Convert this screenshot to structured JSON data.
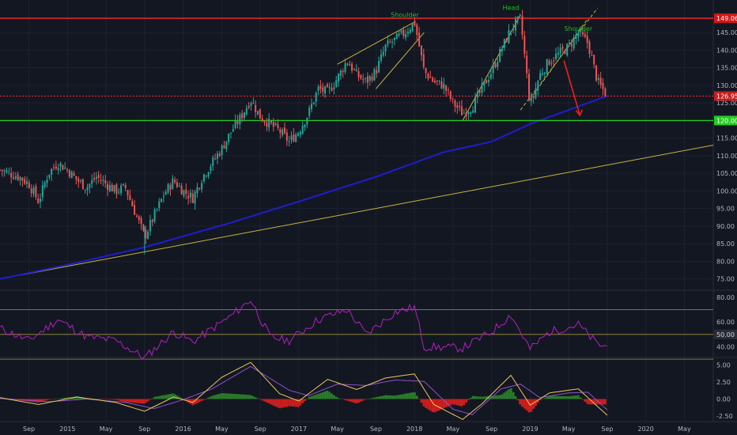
{
  "colors": {
    "background": "#131722",
    "grid": "#1e2230",
    "axis_text": "#b2b5be",
    "candle_up": "#26a69a",
    "candle_down": "#ef5350",
    "resistance": "#ff2a2a",
    "support": "#22cc22",
    "ma_long": "#1e1ecc",
    "trend_yellow": "#c8b43c",
    "rsi": "#b020c0",
    "macd_line": "#e6c85a",
    "signal_line": "#9050d0",
    "hist_up": "#2a7a2a",
    "hist_down": "#cc1e1e",
    "pattern_label": "#22bb22"
  },
  "chart_data": [
    {
      "type": "candlestick",
      "panel": "price",
      "ylim": [
        72,
        152
      ],
      "yticks": [
        "75.00",
        "80.00",
        "85.00",
        "90.00",
        "95.00",
        "100.00",
        "105.00",
        "110.00",
        "115.00",
        "120.00",
        "125.00",
        "130.00",
        "135.00",
        "140.00",
        "145.00"
      ],
      "xticks": [
        "Sep",
        "2015",
        "May",
        "Sep",
        "2016",
        "May",
        "Sep",
        "2017",
        "May",
        "Sep",
        "2018",
        "May",
        "Sep",
        "2019",
        "May",
        "Sep",
        "2020",
        "May"
      ],
      "x_range": [
        "2014-06",
        "2020-08"
      ],
      "price_path": [
        [
          "2014-06",
          106
        ],
        [
          "2014-08",
          104
        ],
        [
          "2014-09",
          102
        ],
        [
          "2014-10",
          97
        ],
        [
          "2014-11",
          105
        ],
        [
          "2014-12",
          108
        ],
        [
          "2015-01",
          106
        ],
        [
          "2015-02",
          103
        ],
        [
          "2015-03",
          101
        ],
        [
          "2015-04",
          104
        ],
        [
          "2015-05",
          102
        ],
        [
          "2015-06",
          100
        ],
        [
          "2015-07",
          101
        ],
        [
          "2015-08",
          94
        ],
        [
          "2015-09",
          87
        ],
        [
          "2015-10",
          93
        ],
        [
          "2015-11",
          99
        ],
        [
          "2015-12",
          103
        ],
        [
          "2016-01",
          100
        ],
        [
          "2016-02",
          98
        ],
        [
          "2016-03",
          104
        ],
        [
          "2016-04",
          108
        ],
        [
          "2016-05",
          112
        ],
        [
          "2016-06",
          117
        ],
        [
          "2016-07",
          121
        ],
        [
          "2016-08",
          126
        ],
        [
          "2016-09",
          121
        ],
        [
          "2016-10",
          119
        ],
        [
          "2016-11",
          117
        ],
        [
          "2016-12",
          114
        ],
        [
          "2017-01",
          117
        ],
        [
          "2017-02",
          122
        ],
        [
          "2017-03",
          129
        ],
        [
          "2017-04",
          128
        ],
        [
          "2017-05",
          132
        ],
        [
          "2017-06",
          137
        ],
        [
          "2017-07",
          133
        ],
        [
          "2017-08",
          131
        ],
        [
          "2017-09",
          134
        ],
        [
          "2017-10",
          141
        ],
        [
          "2017-11",
          143
        ],
        [
          "2017-12",
          145
        ],
        [
          "2018-01",
          148
        ],
        [
          "2018-02",
          134
        ],
        [
          "2018-03",
          131
        ],
        [
          "2018-04",
          130
        ],
        [
          "2018-05",
          125
        ],
        [
          "2018-06",
          122
        ],
        [
          "2018-07",
          124
        ],
        [
          "2018-08",
          129
        ],
        [
          "2018-09",
          134
        ],
        [
          "2018-10",
          140
        ],
        [
          "2018-11",
          146
        ],
        [
          "2018-12",
          149
        ],
        [
          "2019-01",
          124
        ],
        [
          "2019-02",
          133
        ],
        [
          "2019-03",
          137
        ],
        [
          "2019-04",
          139
        ],
        [
          "2019-05",
          141
        ],
        [
          "2019-06",
          145
        ],
        [
          "2019-07",
          142
        ],
        [
          "2019-08",
          131
        ],
        [
          "2019-09",
          127
        ]
      ],
      "lines": [
        {
          "name": "",
          "role": "resistance",
          "value": 149.06
        },
        {
          "name": "",
          "role": "support",
          "value": 120.0
        },
        {
          "name": "",
          "role": "neckline",
          "value": 126.95
        }
      ],
      "moving_average": [
        [
          "2014-06",
          75
        ],
        [
          "2015-01",
          79
        ],
        [
          "2015-09",
          84
        ],
        [
          "2016-06",
          91
        ],
        [
          "2017-01",
          97
        ],
        [
          "2017-09",
          104
        ],
        [
          "2018-04",
          111
        ],
        [
          "2018-09",
          114
        ],
        [
          "2019-01",
          119
        ],
        [
          "2019-06",
          124
        ],
        [
          "2019-09",
          127
        ]
      ],
      "trendline": [
        [
          "2014-06",
          75
        ],
        [
          "2020-08",
          113
        ]
      ],
      "price_labels": [
        {
          "value": 149.06,
          "label": "149.06"
        },
        {
          "value": 126.95,
          "label": "126.95"
        },
        {
          "value": 120.0,
          "label": "120.00"
        }
      ],
      "annotations": [
        {
          "text": "Shoulder",
          "date": "2017-12",
          "value": 149
        },
        {
          "text": "Head",
          "date": "2018-11",
          "value": 151
        },
        {
          "text": "Shoulder",
          "date": "2019-06",
          "value": 145
        }
      ]
    },
    {
      "type": "line",
      "panel": "rsi",
      "ylim": [
        32,
        85
      ],
      "yticks": [
        "40.00",
        "60.00",
        "80.00"
      ],
      "levels": [
        70,
        50,
        30
      ],
      "level_label": "50.00",
      "series": [
        {
          "name": "",
          "values": [
            [
              "2014-06",
              55
            ],
            [
              "2014-09",
              45
            ],
            [
              "2014-12",
              62
            ],
            [
              "2015-03",
              48
            ],
            [
              "2015-06",
              45
            ],
            [
              "2015-09",
              31
            ],
            [
              "2015-12",
              52
            ],
            [
              "2016-02",
              44
            ],
            [
              "2016-06",
              65
            ],
            [
              "2016-08",
              78
            ],
            [
              "2016-10",
              48
            ],
            [
              "2016-12",
              45
            ],
            [
              "2017-03",
              62
            ],
            [
              "2017-06",
              70
            ],
            [
              "2017-08",
              50
            ],
            [
              "2017-11",
              68
            ],
            [
              "2018-01",
              72
            ],
            [
              "2018-02",
              40
            ],
            [
              "2018-06",
              39
            ],
            [
              "2018-09",
              52
            ],
            [
              "2018-11",
              66
            ],
            [
              "2019-01",
              38
            ],
            [
              "2019-03",
              52
            ],
            [
              "2019-06",
              58
            ],
            [
              "2019-08",
              42
            ],
            [
              "2019-09",
              40
            ]
          ]
        }
      ]
    },
    {
      "type": "histogram",
      "panel": "macd",
      "ylim": [
        -3.2,
        6.0
      ],
      "yticks": [
        "5.00",
        "2.50",
        "0.00",
        "-2.50"
      ],
      "macd": [
        [
          "2014-06",
          0.2
        ],
        [
          "2014-10",
          -0.8
        ],
        [
          "2015-02",
          0.3
        ],
        [
          "2015-06",
          -0.5
        ],
        [
          "2015-09",
          -1.8
        ],
        [
          "2015-12",
          0.3
        ],
        [
          "2016-02",
          -0.5
        ],
        [
          "2016-05",
          3.2
        ],
        [
          "2016-08",
          5.4
        ],
        [
          "2016-11",
          0.8
        ],
        [
          "2017-01",
          -0.3
        ],
        [
          "2017-04",
          2.9
        ],
        [
          "2017-07",
          1.4
        ],
        [
          "2017-10",
          3.1
        ],
        [
          "2018-01",
          3.7
        ],
        [
          "2018-03",
          -0.8
        ],
        [
          "2018-06",
          -3.0
        ],
        [
          "2018-08",
          -0.7
        ],
        [
          "2018-11",
          3.5
        ],
        [
          "2019-01",
          -0.9
        ],
        [
          "2019-03",
          0.9
        ],
        [
          "2019-06",
          1.5
        ],
        [
          "2019-09",
          -2.4
        ]
      ],
      "signal": [
        [
          "2014-06",
          0.1
        ],
        [
          "2014-11",
          -0.4
        ],
        [
          "2015-03",
          0.0
        ],
        [
          "2015-07",
          -0.5
        ],
        [
          "2015-10",
          -1.4
        ],
        [
          "2016-01",
          -0.1
        ],
        [
          "2016-04",
          1.5
        ],
        [
          "2016-08",
          4.8
        ],
        [
          "2016-12",
          1.3
        ],
        [
          "2017-02",
          0.5
        ],
        [
          "2017-05",
          2.2
        ],
        [
          "2017-08",
          2.0
        ],
        [
          "2017-11",
          2.8
        ],
        [
          "2018-02",
          2.6
        ],
        [
          "2018-05",
          -1.5
        ],
        [
          "2018-07",
          -2.3
        ],
        [
          "2018-10",
          1.5
        ],
        [
          "2018-12",
          2.2
        ],
        [
          "2019-02",
          0.2
        ],
        [
          "2019-05",
          0.9
        ],
        [
          "2019-07",
          1.0
        ],
        [
          "2019-09",
          -1.6
        ]
      ]
    }
  ]
}
